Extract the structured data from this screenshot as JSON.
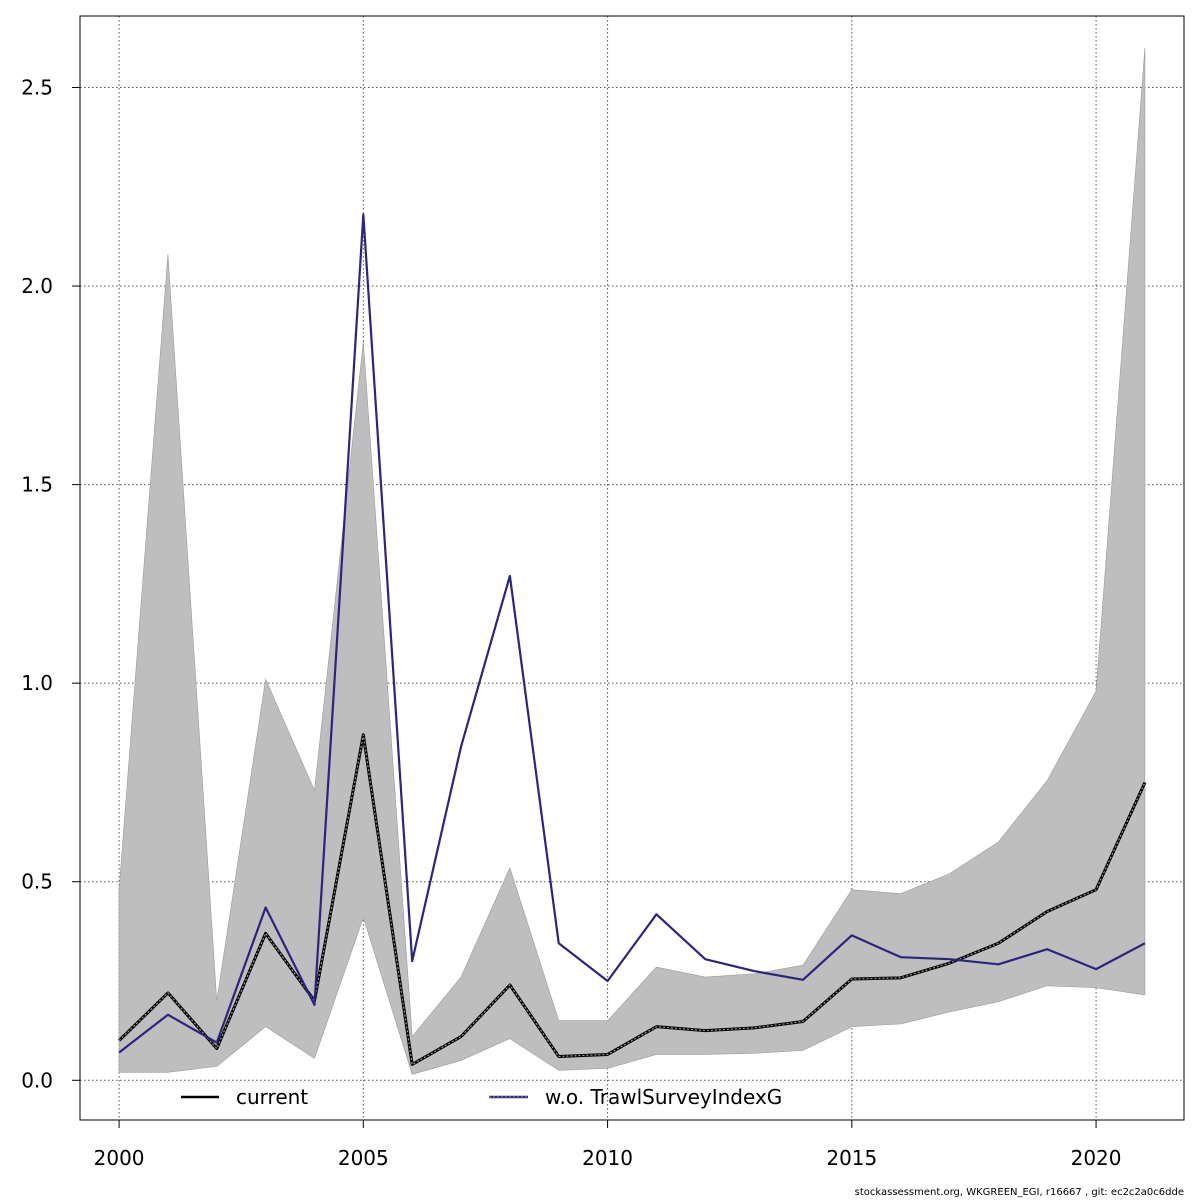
{
  "chart_data": {
    "type": "line",
    "title": "",
    "xlabel": "",
    "ylabel": "",
    "xlim": [
      1999.2,
      2021.8
    ],
    "ylim": [
      -0.1,
      2.68
    ],
    "x_ticks": [
      2000,
      2005,
      2010,
      2015,
      2020
    ],
    "y_ticks": [
      0.0,
      0.5,
      1.0,
      1.5,
      2.0,
      2.5
    ],
    "x_tick_labels": [
      "2000",
      "2005",
      "2010",
      "2015",
      "2020"
    ],
    "y_tick_labels": [
      "0.0",
      "0.5",
      "1.0",
      "1.5",
      "2.0",
      "2.5"
    ],
    "grid": true,
    "legend_position": "bottom",
    "x": [
      2000,
      2001,
      2002,
      2003,
      2004,
      2005,
      2006,
      2007,
      2008,
      2009,
      2010,
      2011,
      2012,
      2013,
      2014,
      2015,
      2016,
      2017,
      2018,
      2019,
      2020,
      2021
    ],
    "band": {
      "lower": [
        0.02,
        0.02,
        0.035,
        0.135,
        0.055,
        0.41,
        0.015,
        0.05,
        0.105,
        0.025,
        0.03,
        0.065,
        0.065,
        0.068,
        0.075,
        0.135,
        0.142,
        0.172,
        0.198,
        0.238,
        0.233,
        0.215
      ],
      "upper": [
        0.48,
        2.08,
        0.2,
        1.01,
        0.73,
        1.86,
        0.11,
        0.26,
        0.535,
        0.15,
        0.15,
        0.285,
        0.26,
        0.268,
        0.29,
        0.48,
        0.47,
        0.52,
        0.6,
        0.755,
        0.98,
        2.6
      ],
      "color": "#bebebe"
    },
    "series": [
      {
        "name": "current",
        "color": "#000000",
        "values": [
          0.1,
          0.22,
          0.08,
          0.37,
          0.2,
          0.87,
          0.04,
          0.11,
          0.24,
          0.06,
          0.065,
          0.135,
          0.125,
          0.132,
          0.148,
          0.255,
          0.258,
          0.295,
          0.345,
          0.425,
          0.48,
          0.75
        ]
      },
      {
        "name": "w.o. TrawlSurveyIndexG",
        "color": "#2b2480",
        "values": [
          0.07,
          0.165,
          0.095,
          0.435,
          0.19,
          2.18,
          0.3,
          0.84,
          1.27,
          0.345,
          0.25,
          0.418,
          0.305,
          0.275,
          0.253,
          0.365,
          0.31,
          0.305,
          0.292,
          0.33,
          0.28,
          0.345
        ]
      }
    ]
  },
  "footer": {
    "text": "stockassessment.org, WKGREEN_EGI, r16667 , git: ec2c2a0c6dde"
  }
}
